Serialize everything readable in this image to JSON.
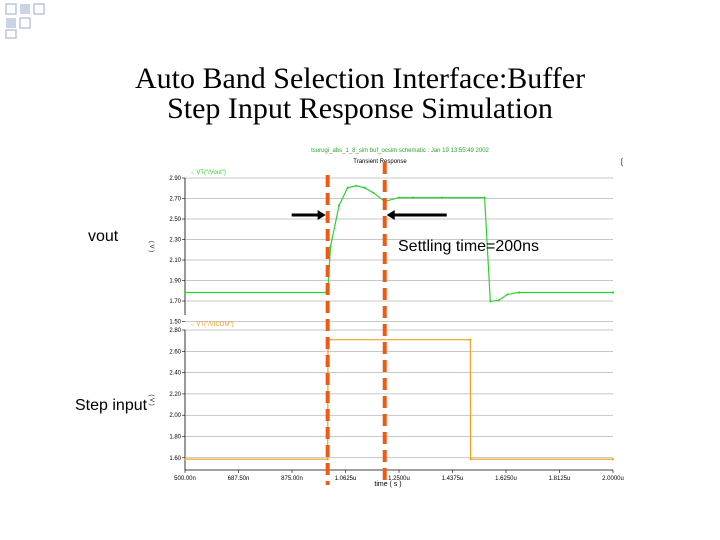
{
  "slide": {
    "title_line1": "Auto Band Selection Interface:Buffer",
    "title_line2": "Step Input Response Simulation"
  },
  "annotations": {
    "vout": "vout",
    "step_input": "Step input",
    "settling": "Settling time=200ns"
  },
  "colors": {
    "vout_trace": "#2ed12e",
    "vin_trace": "#f0a020",
    "marker": "#ee5a14",
    "grid": "#909090",
    "window_title": "#2aa42a"
  },
  "chart_data": [
    {
      "type": "line",
      "window_title": "tsurugi_abs_1_8_sim buf_ocsim schematic : Jan 19 13:55:49 2002",
      "panel_title": "Transient Response",
      "legend": "VT(\"/Vout\")",
      "ylabel": "( V )",
      "yticks": [
        "2.90",
        "2.70",
        "2.50",
        "2.30",
        "2.10",
        "1.90",
        "1.70",
        "1.50"
      ],
      "ylim": [
        1.5,
        2.9
      ],
      "xlim": [
        0.5,
        2.0
      ],
      "x": [
        0.5,
        1.0,
        1.01,
        1.04,
        1.07,
        1.1,
        1.13,
        1.16,
        1.2,
        1.25,
        1.3,
        1.4,
        1.55,
        1.57,
        1.6,
        1.63,
        1.67,
        2.0
      ],
      "y": [
        1.73,
        1.73,
        2.2,
        2.62,
        2.8,
        2.82,
        2.8,
        2.75,
        2.66,
        2.7,
        2.7,
        2.7,
        2.7,
        1.64,
        1.65,
        1.71,
        1.73,
        1.73
      ]
    },
    {
      "type": "line",
      "legend": "VT(\"/VICOM\")",
      "ylabel": "( V )",
      "yticks": [
        "2.80",
        "2.60",
        "2.40",
        "2.20",
        "2.00",
        "1.80",
        "1.60"
      ],
      "ylim": [
        1.6,
        2.9
      ],
      "xlim": [
        0.5,
        2.0
      ],
      "xticks": [
        "500.00n",
        "687.50n",
        "875.00n",
        "1.0625u",
        "1.2500u",
        "1.4375u",
        "1.6250u",
        "1.8125u",
        "2.0000u"
      ],
      "xlabel": "time ( s )",
      "x": [
        0.5,
        1.0,
        1.001,
        1.5,
        1.501,
        2.0
      ],
      "y": [
        1.7,
        1.7,
        2.81,
        2.81,
        1.7,
        1.7
      ]
    }
  ]
}
